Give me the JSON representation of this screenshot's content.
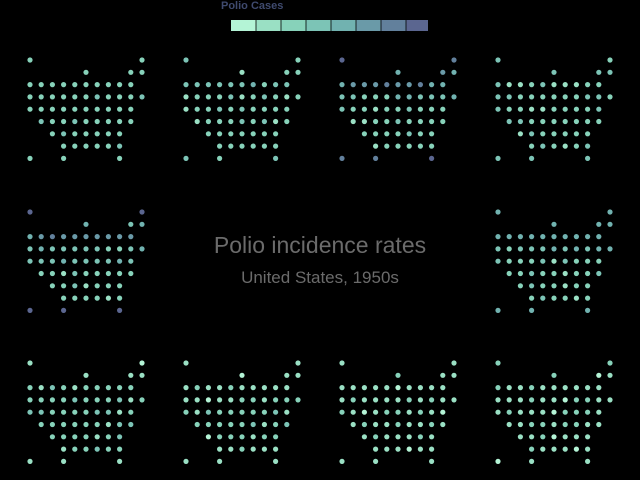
{
  "legend": {
    "title": "Polio Cases",
    "colors": [
      "#b4f4d6",
      "#9ae0c4",
      "#87d2ba",
      "#7cc4b6",
      "#71b2b0",
      "#6a9aa8",
      "#62809c",
      "#5b6690"
    ]
  },
  "title": "Polio incidence rates",
  "subtitle": "United States, 1950s",
  "chart_data": {
    "type": "heatmap",
    "description_levels": 8,
    "panels": [
      {
        "levels": [
          2,
          2,
          2,
          2,
          2,
          2,
          2,
          2
        ]
      },
      {
        "levels": [
          3,
          2,
          3,
          2,
          2,
          2,
          2,
          2
        ]
      },
      {
        "levels": [
          6,
          4,
          5,
          3,
          2,
          2,
          2,
          2
        ]
      },
      {
        "levels": [
          3,
          3,
          2,
          2,
          2,
          2,
          2,
          2
        ]
      },
      {
        "levels": [
          7,
          4,
          5,
          3,
          3,
          2,
          2,
          2
        ]
      },
      {
        "levels": [
          4,
          4,
          4,
          3,
          2,
          2,
          2,
          2
        ]
      },
      {
        "levels": [
          1,
          1,
          2,
          2,
          2,
          2,
          2,
          2
        ]
      },
      {
        "levels": [
          1,
          1,
          1,
          1,
          2,
          2,
          1,
          1
        ]
      },
      {
        "levels": [
          1,
          1,
          1,
          1,
          1,
          1,
          1,
          1
        ]
      },
      {
        "levels": [
          1,
          1,
          1,
          1,
          1,
          1,
          1,
          1
        ]
      }
    ]
  }
}
